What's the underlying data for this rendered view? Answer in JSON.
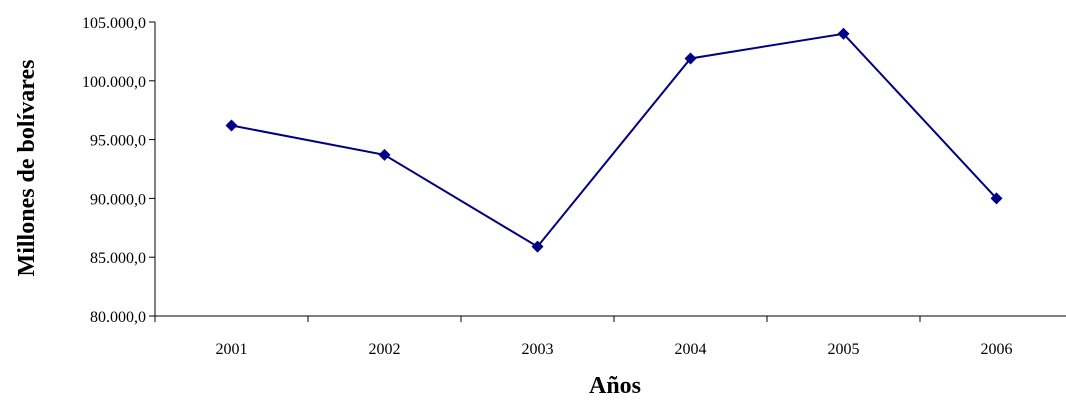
{
  "chart_data": {
    "type": "line",
    "title": "",
    "xlabel": "Años",
    "ylabel": "Millones de bolívares",
    "categories": [
      "2001",
      "2002",
      "2003",
      "2004",
      "2005",
      "2006"
    ],
    "series": [
      {
        "values": [
          96200,
          93700,
          85900,
          101900,
          104000,
          90000
        ]
      }
    ],
    "ylim": [
      80000,
      105000
    ],
    "yticks": [
      80000,
      85000,
      90000,
      95000,
      100000,
      105000
    ],
    "ytick_labels": [
      "80.000,0",
      "85.000,0",
      "90.000,0",
      "95.000,0",
      "100.000,0",
      "105.000,0"
    ],
    "grid": false,
    "legend": "none",
    "marker": "diamond",
    "line_color": "#000080"
  }
}
